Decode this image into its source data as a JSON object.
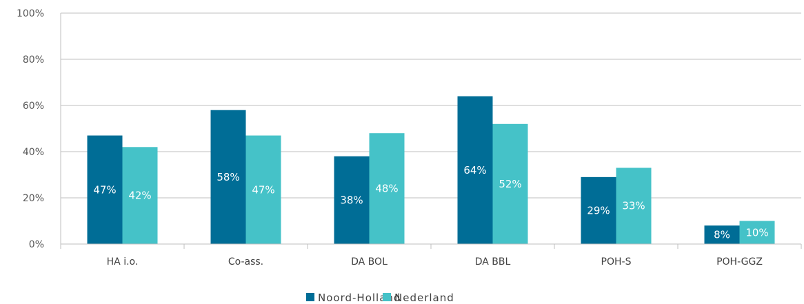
{
  "chart_data": {
    "type": "bar",
    "categories": [
      "HA i.o.",
      "Co-ass.",
      "DA BOL",
      "DA BBL",
      "POH-S",
      "POH-GGZ"
    ],
    "series": [
      {
        "name": "Noord-Holland",
        "values": [
          47,
          58,
          38,
          64,
          29,
          8
        ],
        "labels": [
          "47%",
          "58%",
          "38%",
          "64%",
          "29%",
          "8%"
        ],
        "color": "#006d96"
      },
      {
        "name": "Nederland",
        "values": [
          42,
          47,
          48,
          52,
          33,
          10
        ],
        "labels": [
          "42%",
          "47%",
          "48%",
          "52%",
          "33%",
          "10%"
        ],
        "color": "#45c2c8"
      }
    ],
    "yticks": [
      "0%",
      "20%",
      "40%",
      "60%",
      "80%",
      "100%"
    ],
    "ylim": [
      0,
      100
    ],
    "grid": true,
    "legend": "bottom-center"
  }
}
